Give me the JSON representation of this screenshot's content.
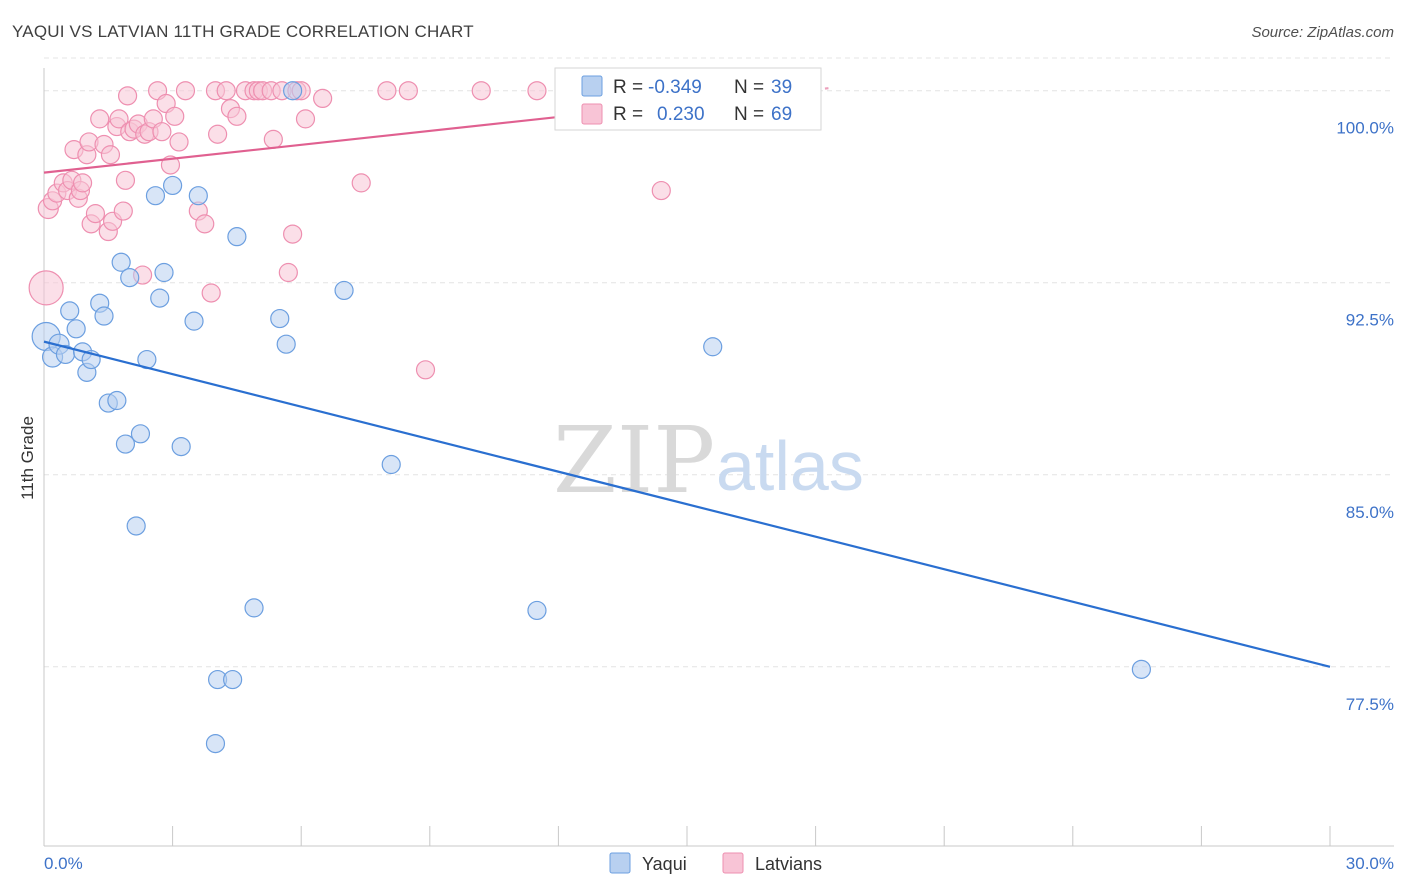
{
  "title": "YAQUI VS LATVIAN 11TH GRADE CORRELATION CHART",
  "source": "Source: ZipAtlas.com",
  "watermark": {
    "zip": "ZIP",
    "atlas": "atlas"
  },
  "legend": {
    "r_label": "R =",
    "n_label": "N =",
    "rows": [
      {
        "series": "Yaqui",
        "r": "-0.349",
        "n": "39"
      },
      {
        "series": "Latvians",
        "r": "0.230",
        "n": "69"
      }
    ]
  },
  "colors": {
    "yaqui_fill": "#b8d0f0",
    "yaqui_stroke": "#6c9fe0",
    "yaqui_line": "#2a6fd0",
    "latvians_fill": "#f8c4d6",
    "latvians_stroke": "#ee8fb0",
    "latvians_line": "#e06090",
    "grid": "#e4e4e4",
    "tick_label": "#3d72c8"
  },
  "chart_data": {
    "type": "scatter",
    "title": "YAQUI VS LATVIAN 11TH GRADE CORRELATION CHART",
    "xlabel": "",
    "ylabel": "11th Grade",
    "xlim": [
      0,
      30
    ],
    "ylim": [
      70.5,
      101.2
    ],
    "x_tick_labels": [
      "0.0%",
      "30.0%"
    ],
    "y_ticks": [
      77.5,
      85.0,
      92.5,
      100.0
    ],
    "y_tick_labels": [
      "77.5%",
      "85.0%",
      "92.5%",
      "100.0%"
    ],
    "grid": true,
    "legend_position": "top-center",
    "series": [
      {
        "name": "Yaqui",
        "points": [
          {
            "x": 0.05,
            "y": 90.4,
            "s": 14
          },
          {
            "x": 0.2,
            "y": 89.6,
            "s": 10
          },
          {
            "x": 0.35,
            "y": 90.1,
            "s": 10
          },
          {
            "x": 0.5,
            "y": 89.7,
            "s": 9
          },
          {
            "x": 0.6,
            "y": 91.4,
            "s": 9
          },
          {
            "x": 0.75,
            "y": 90.7,
            "s": 9
          },
          {
            "x": 0.9,
            "y": 89.8,
            "s": 9
          },
          {
            "x": 1.0,
            "y": 89.0,
            "s": 9
          },
          {
            "x": 1.1,
            "y": 89.5,
            "s": 9
          },
          {
            "x": 1.3,
            "y": 91.7,
            "s": 9
          },
          {
            "x": 1.4,
            "y": 91.2,
            "s": 9
          },
          {
            "x": 1.5,
            "y": 87.8,
            "s": 9
          },
          {
            "x": 1.7,
            "y": 87.9,
            "s": 9
          },
          {
            "x": 1.8,
            "y": 93.3,
            "s": 9
          },
          {
            "x": 1.9,
            "y": 86.2,
            "s": 9
          },
          {
            "x": 2.0,
            "y": 92.7,
            "s": 9
          },
          {
            "x": 2.15,
            "y": 83.0,
            "s": 9
          },
          {
            "x": 2.25,
            "y": 86.6,
            "s": 9
          },
          {
            "x": 2.4,
            "y": 89.5,
            "s": 9
          },
          {
            "x": 2.6,
            "y": 95.9,
            "s": 9
          },
          {
            "x": 2.7,
            "y": 91.9,
            "s": 9
          },
          {
            "x": 2.8,
            "y": 92.9,
            "s": 9
          },
          {
            "x": 3.0,
            "y": 96.3,
            "s": 9
          },
          {
            "x": 3.2,
            "y": 86.1,
            "s": 9
          },
          {
            "x": 3.5,
            "y": 91.0,
            "s": 9
          },
          {
            "x": 3.6,
            "y": 95.9,
            "s": 9
          },
          {
            "x": 4.0,
            "y": 74.5,
            "s": 9
          },
          {
            "x": 4.05,
            "y": 77.0,
            "s": 9
          },
          {
            "x": 4.4,
            "y": 77.0,
            "s": 9
          },
          {
            "x": 4.5,
            "y": 94.3,
            "s": 9
          },
          {
            "x": 4.9,
            "y": 79.8,
            "s": 9
          },
          {
            "x": 5.5,
            "y": 91.1,
            "s": 9
          },
          {
            "x": 5.65,
            "y": 90.1,
            "s": 9
          },
          {
            "x": 5.8,
            "y": 100.0,
            "s": 9
          },
          {
            "x": 7.0,
            "y": 92.2,
            "s": 9
          },
          {
            "x": 8.1,
            "y": 85.4,
            "s": 9
          },
          {
            "x": 11.5,
            "y": 79.7,
            "s": 9
          },
          {
            "x": 15.6,
            "y": 90.0,
            "s": 9
          },
          {
            "x": 25.6,
            "y": 77.4,
            "s": 9
          }
        ]
      },
      {
        "name": "Latvians",
        "points": [
          {
            "x": 0.05,
            "y": 92.3,
            "s": 17
          },
          {
            "x": 0.1,
            "y": 95.4,
            "s": 10
          },
          {
            "x": 0.2,
            "y": 95.7,
            "s": 9
          },
          {
            "x": 0.3,
            "y": 96.0,
            "s": 9
          },
          {
            "x": 0.45,
            "y": 96.4,
            "s": 9
          },
          {
            "x": 0.55,
            "y": 96.1,
            "s": 9
          },
          {
            "x": 0.65,
            "y": 96.5,
            "s": 9
          },
          {
            "x": 0.7,
            "y": 97.7,
            "s": 9
          },
          {
            "x": 0.8,
            "y": 95.8,
            "s": 9
          },
          {
            "x": 0.85,
            "y": 96.1,
            "s": 9
          },
          {
            "x": 0.9,
            "y": 96.4,
            "s": 9
          },
          {
            "x": 1.0,
            "y": 97.5,
            "s": 9
          },
          {
            "x": 1.05,
            "y": 98.0,
            "s": 9
          },
          {
            "x": 1.1,
            "y": 94.8,
            "s": 9
          },
          {
            "x": 1.2,
            "y": 95.2,
            "s": 9
          },
          {
            "x": 1.3,
            "y": 98.9,
            "s": 9
          },
          {
            "x": 1.4,
            "y": 97.9,
            "s": 9
          },
          {
            "x": 1.5,
            "y": 94.5,
            "s": 9
          },
          {
            "x": 1.55,
            "y": 97.5,
            "s": 9
          },
          {
            "x": 1.6,
            "y": 94.9,
            "s": 9
          },
          {
            "x": 1.7,
            "y": 98.6,
            "s": 9
          },
          {
            "x": 1.75,
            "y": 98.9,
            "s": 9
          },
          {
            "x": 1.85,
            "y": 95.3,
            "s": 9
          },
          {
            "x": 1.9,
            "y": 96.5,
            "s": 9
          },
          {
            "x": 1.95,
            "y": 99.8,
            "s": 9
          },
          {
            "x": 2.0,
            "y": 98.4,
            "s": 9
          },
          {
            "x": 2.1,
            "y": 98.5,
            "s": 9
          },
          {
            "x": 2.2,
            "y": 98.7,
            "s": 9
          },
          {
            "x": 2.3,
            "y": 92.8,
            "s": 9
          },
          {
            "x": 2.35,
            "y": 98.3,
            "s": 9
          },
          {
            "x": 2.45,
            "y": 98.4,
            "s": 9
          },
          {
            "x": 2.55,
            "y": 98.9,
            "s": 9
          },
          {
            "x": 2.65,
            "y": 100.0,
            "s": 9
          },
          {
            "x": 2.75,
            "y": 98.4,
            "s": 9
          },
          {
            "x": 2.85,
            "y": 99.5,
            "s": 9
          },
          {
            "x": 2.95,
            "y": 97.1,
            "s": 9
          },
          {
            "x": 3.05,
            "y": 99.0,
            "s": 9
          },
          {
            "x": 3.15,
            "y": 98.0,
            "s": 9
          },
          {
            "x": 3.3,
            "y": 100.0,
            "s": 9
          },
          {
            "x": 3.6,
            "y": 95.3,
            "s": 9
          },
          {
            "x": 3.75,
            "y": 94.8,
            "s": 9
          },
          {
            "x": 3.9,
            "y": 92.1,
            "s": 9
          },
          {
            "x": 4.0,
            "y": 100.0,
            "s": 9
          },
          {
            "x": 4.05,
            "y": 98.3,
            "s": 9
          },
          {
            "x": 4.25,
            "y": 100.0,
            "s": 9
          },
          {
            "x": 4.35,
            "y": 99.3,
            "s": 9
          },
          {
            "x": 4.5,
            "y": 99.0,
            "s": 9
          },
          {
            "x": 4.7,
            "y": 100.0,
            "s": 9
          },
          {
            "x": 4.9,
            "y": 100.0,
            "s": 9
          },
          {
            "x": 5.0,
            "y": 100.0,
            "s": 9
          },
          {
            "x": 5.1,
            "y": 100.0,
            "s": 9
          },
          {
            "x": 5.3,
            "y": 100.0,
            "s": 9
          },
          {
            "x": 5.35,
            "y": 98.1,
            "s": 9
          },
          {
            "x": 5.55,
            "y": 100.0,
            "s": 9
          },
          {
            "x": 5.7,
            "y": 92.9,
            "s": 9
          },
          {
            "x": 5.8,
            "y": 94.4,
            "s": 9
          },
          {
            "x": 5.9,
            "y": 100.0,
            "s": 9
          },
          {
            "x": 6.0,
            "y": 100.0,
            "s": 9
          },
          {
            "x": 6.1,
            "y": 98.9,
            "s": 9
          },
          {
            "x": 6.5,
            "y": 99.7,
            "s": 9
          },
          {
            "x": 7.4,
            "y": 96.4,
            "s": 9
          },
          {
            "x": 8.0,
            "y": 100.0,
            "s": 9
          },
          {
            "x": 8.5,
            "y": 100.0,
            "s": 9
          },
          {
            "x": 8.9,
            "y": 89.1,
            "s": 9
          },
          {
            "x": 10.2,
            "y": 100.0,
            "s": 9
          },
          {
            "x": 11.5,
            "y": 100.0,
            "s": 9
          },
          {
            "x": 13.3,
            "y": 100.0,
            "s": 9
          },
          {
            "x": 14.3,
            "y": 100.0,
            "s": 9
          },
          {
            "x": 14.4,
            "y": 96.1,
            "s": 9
          }
        ]
      }
    ],
    "trend_lines": [
      {
        "series": "Yaqui",
        "x": [
          0,
          30
        ],
        "y": [
          90.2,
          77.5
        ]
      },
      {
        "series": "Latvians",
        "x": [
          0,
          14.9
        ],
        "y": [
          96.8,
          99.5
        ]
      },
      {
        "series": "Latvians",
        "x": [
          14.9,
          18.3
        ],
        "y": [
          99.5,
          100.1
        ],
        "dashed": true
      }
    ]
  }
}
